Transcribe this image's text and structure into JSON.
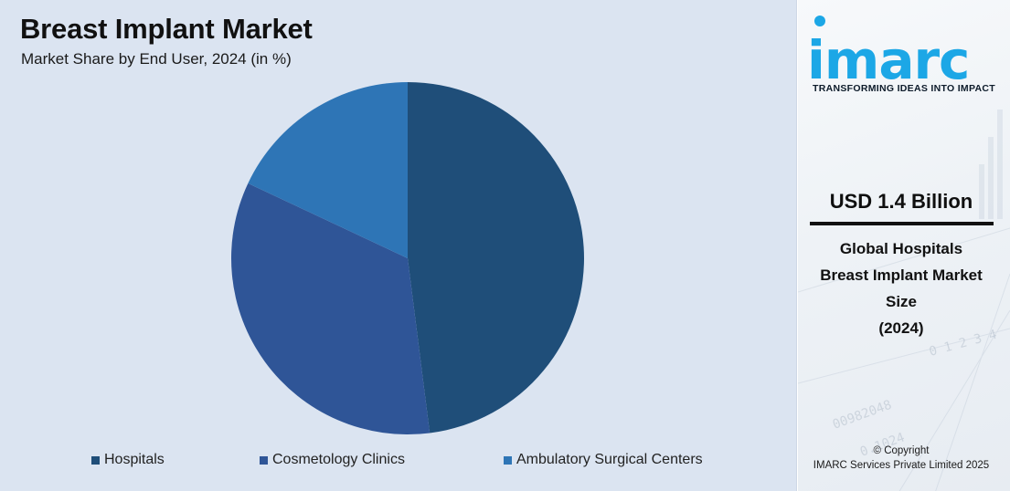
{
  "chart_data": {
    "type": "pie",
    "title": "Breast Implant Market",
    "subtitle": "Market Share by End User, 2024 (in %)",
    "categories": [
      "Hospitals",
      "Cosmetology Clinics",
      "Ambulatory Surgical Centers"
    ],
    "values": [
      48,
      34,
      18
    ],
    "colors": [
      "#1f4e79",
      "#2f5597",
      "#2e75b6"
    ],
    "legend_position": "bottom"
  },
  "sidebar": {
    "logo_text": "imarc",
    "tagline": "TRANSFORMING IDEAS INTO IMPACT",
    "stat_value": "USD 1.4 Billion",
    "stat_label_lines": [
      "Global Hospitals",
      "Breast Implant Market",
      "Size",
      "(2024)"
    ],
    "copyright_lines": [
      "© Copyright",
      "IMARC Services Private Limited 2025"
    ]
  },
  "colors": {
    "panel_bg": "#dbe4f1",
    "brand_cyan": "#1ca7e6"
  }
}
